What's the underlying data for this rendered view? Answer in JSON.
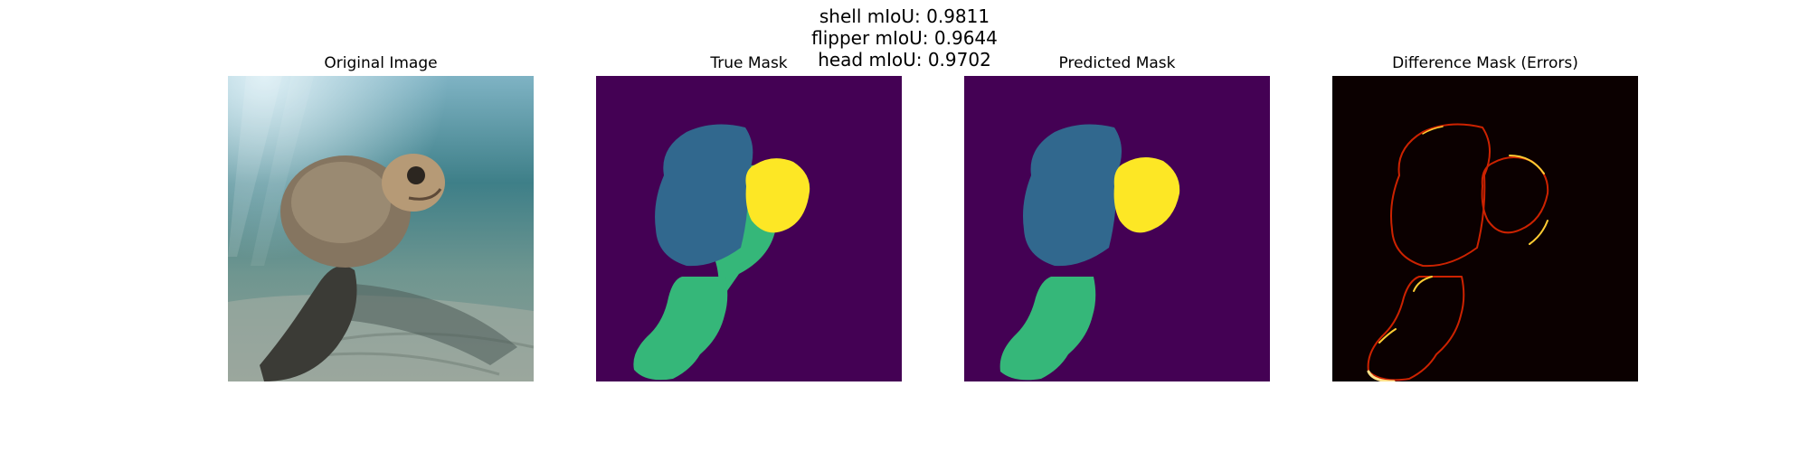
{
  "figure": {
    "metrics": [
      "shell mIoU: 0.9811",
      "flipper mIoU: 0.9644",
      "head mIoU: 0.9702"
    ],
    "panels": [
      {
        "title": "Original Image",
        "content": "underwater-turtle-photo"
      },
      {
        "title": "True Mask",
        "content": "segmentation-mask"
      },
      {
        "title": "Predicted Mask",
        "content": "segmentation-mask"
      },
      {
        "title": "Difference Mask (Errors)",
        "content": "error-outline-map"
      }
    ],
    "colors": {
      "mask_background": "#440154",
      "shell": "#31688e",
      "head": "#fde725",
      "flipper": "#35b779",
      "error_background": "#0b0000",
      "error_edge": "#ffcc33",
      "error_edge_mid": "#cc2200"
    }
  }
}
